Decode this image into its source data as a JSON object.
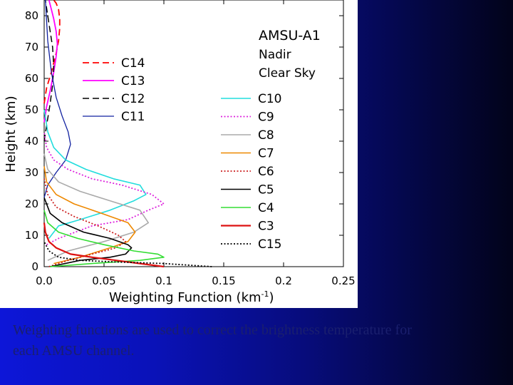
{
  "caption": "Weighting functions are used to correct the brightness temperature for each AMSU channel.",
  "chart_data": {
    "type": "line",
    "annotation_lines": [
      "AMSU-A1",
      "Nadir",
      "Clear Sky"
    ],
    "xlabel": "Weighting Function (km",
    "xlabel_sup": "-1",
    "xlabel_close": ")",
    "ylabel": "Height (km)",
    "xlim": [
      0,
      0.25
    ],
    "ylim": [
      0,
      85
    ],
    "x_ticks": [
      "0.0",
      "0.05",
      "0.1",
      "0.15",
      "0.2",
      "0.25"
    ],
    "y_ticks": [
      "0",
      "10",
      "20",
      "30",
      "40",
      "50",
      "60",
      "70",
      "80"
    ],
    "legend_left": [
      "C14",
      "C13",
      "C12",
      "C11"
    ],
    "legend_right": [
      "C10",
      "C9",
      "C8",
      "C7",
      "C6",
      "C5",
      "C4",
      "C3",
      "C15"
    ],
    "series": [
      {
        "name": "C14",
        "color": "#ff0000",
        "dash": "dashed",
        "width": 1.8,
        "x": [
          0.0,
          0.002,
          0.006,
          0.01,
          0.012,
          0.013,
          0.013,
          0.012,
          0.01,
          0.008
        ],
        "y": [
          52,
          57,
          62,
          68,
          72,
          76,
          79,
          82,
          84,
          85
        ]
      },
      {
        "name": "C13",
        "color": "#ff00ff",
        "dash": "solid",
        "width": 1.8,
        "x": [
          0.0,
          0.002,
          0.005,
          0.008,
          0.01,
          0.011,
          0.01,
          0.008,
          0.006,
          0.004
        ],
        "y": [
          46,
          51,
          56,
          62,
          67,
          71,
          75,
          79,
          82,
          85
        ]
      },
      {
        "name": "C12",
        "color": "#000000",
        "dash": "dashed",
        "width": 1.5,
        "x": [
          0.0,
          0.002,
          0.005,
          0.007,
          0.008,
          0.007,
          0.005,
          0.003,
          0.001
        ],
        "y": [
          40,
          45,
          52,
          58,
          64,
          70,
          75,
          80,
          85
        ]
      },
      {
        "name": "C11",
        "color": "#1020a0",
        "dash": "solid",
        "width": 1.3,
        "x": [
          0.0,
          0.003,
          0.01,
          0.018,
          0.022,
          0.02,
          0.015,
          0.01,
          0.006,
          0.003,
          0.001
        ],
        "y": [
          22,
          26,
          30,
          34,
          39,
          43,
          48,
          54,
          62,
          72,
          85
        ]
      },
      {
        "name": "C10",
        "color": "#22dddd",
        "dash": "solid",
        "width": 1.6,
        "x": [
          0.004,
          0.012,
          0.03,
          0.055,
          0.075,
          0.085,
          0.08,
          0.058,
          0.035,
          0.018,
          0.008,
          0.003,
          0.0
        ],
        "y": [
          9,
          13,
          15,
          18,
          21,
          23,
          26,
          28,
          31,
          34,
          38,
          43,
          50
        ]
      },
      {
        "name": "C9",
        "color": "#dd22dd",
        "dash": "dotted",
        "width": 1.8,
        "x": [
          0.002,
          0.012,
          0.04,
          0.07,
          0.087,
          0.1,
          0.09,
          0.065,
          0.04,
          0.02,
          0.008,
          0.002,
          0.0
        ],
        "y": [
          7,
          9,
          13,
          15,
          18,
          20,
          23,
          26,
          28,
          31,
          34,
          38,
          43
        ]
      },
      {
        "name": "C8",
        "color": "#aaaaaa",
        "dash": "solid",
        "width": 1.6,
        "x": [
          0.003,
          0.02,
          0.05,
          0.075,
          0.087,
          0.08,
          0.055,
          0.03,
          0.012,
          0.003,
          0.0
        ],
        "y": [
          2,
          5,
          8,
          11,
          14,
          18,
          21,
          24,
          27,
          31,
          36
        ]
      },
      {
        "name": "C7",
        "color": "#ee8800",
        "dash": "solid",
        "width": 1.6,
        "x": [
          0.008,
          0.03,
          0.055,
          0.07,
          0.076,
          0.07,
          0.048,
          0.025,
          0.01,
          0.002,
          0.0
        ],
        "y": [
          1,
          3,
          6,
          8,
          11,
          14,
          17,
          20,
          23,
          27,
          32
        ]
      },
      {
        "name": "C6",
        "color": "#cc2222",
        "dash": "dotted",
        "width": 1.8,
        "x": [
          0.004,
          0.02,
          0.04,
          0.06,
          0.068,
          0.062,
          0.045,
          0.025,
          0.01,
          0.003,
          0.0
        ],
        "y": [
          0,
          2,
          4,
          6,
          8,
          10,
          13,
          16,
          19,
          23,
          28
        ]
      },
      {
        "name": "C5",
        "color": "#000000",
        "dash": "solid",
        "width": 1.6,
        "x": [
          0.005,
          0.03,
          0.055,
          0.068,
          0.073,
          0.07,
          0.055,
          0.033,
          0.015,
          0.005,
          0.0
        ],
        "y": [
          0,
          2,
          3,
          4,
          6,
          7,
          9,
          11,
          14,
          17,
          22
        ]
      },
      {
        "name": "C4",
        "color": "#33dd33",
        "dash": "solid",
        "width": 1.6,
        "x": [
          0.005,
          0.04,
          0.08,
          0.1,
          0.095,
          0.075,
          0.05,
          0.028,
          0.012,
          0.003,
          0.0
        ],
        "y": [
          0,
          1,
          2,
          3,
          4,
          5,
          7,
          9,
          11,
          14,
          18
        ]
      },
      {
        "name": "C3",
        "color": "#dd1111",
        "dash": "solid",
        "width": 2.2,
        "x": [
          0.1,
          0.08,
          0.06,
          0.04,
          0.022,
          0.01,
          0.004,
          0.001,
          0.0
        ],
        "y": [
          0,
          1,
          2,
          3,
          4,
          6,
          8,
          11,
          14
        ]
      },
      {
        "name": "C15",
        "color": "#000000",
        "dash": "dotted",
        "width": 1.8,
        "x": [
          0.14,
          0.1,
          0.06,
          0.03,
          0.012,
          0.004,
          0.0
        ],
        "y": [
          0,
          1,
          1.5,
          2,
          3,
          5,
          8
        ]
      }
    ]
  }
}
